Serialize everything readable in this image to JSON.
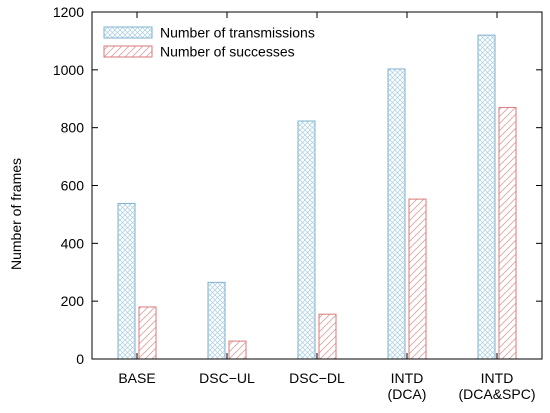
{
  "chart_data": {
    "type": "bar",
    "title": "",
    "xlabel": "",
    "ylabel": "Number of frames",
    "ylim": [
      0,
      1200
    ],
    "yticks": [
      "0",
      "200",
      "400",
      "600",
      "800",
      "1000",
      "1200"
    ],
    "categories": [
      [
        "BASE"
      ],
      [
        "DSC−UL"
      ],
      [
        "DSC−DL"
      ],
      [
        "INTD",
        "(DCA)"
      ],
      [
        "INTD",
        "(DCA&SPC)"
      ]
    ],
    "series": [
      {
        "name": "Number of transmissions",
        "values": [
          538,
          265,
          823,
          1003,
          1120
        ],
        "color": "#7fb2cf",
        "pattern": "crosshatch"
      },
      {
        "name": "Number of successes",
        "values": [
          180,
          62,
          155,
          553,
          870
        ],
        "color": "#d97a7a",
        "pattern": "diagonal"
      }
    ],
    "legend": "top-left",
    "grid": false
  }
}
